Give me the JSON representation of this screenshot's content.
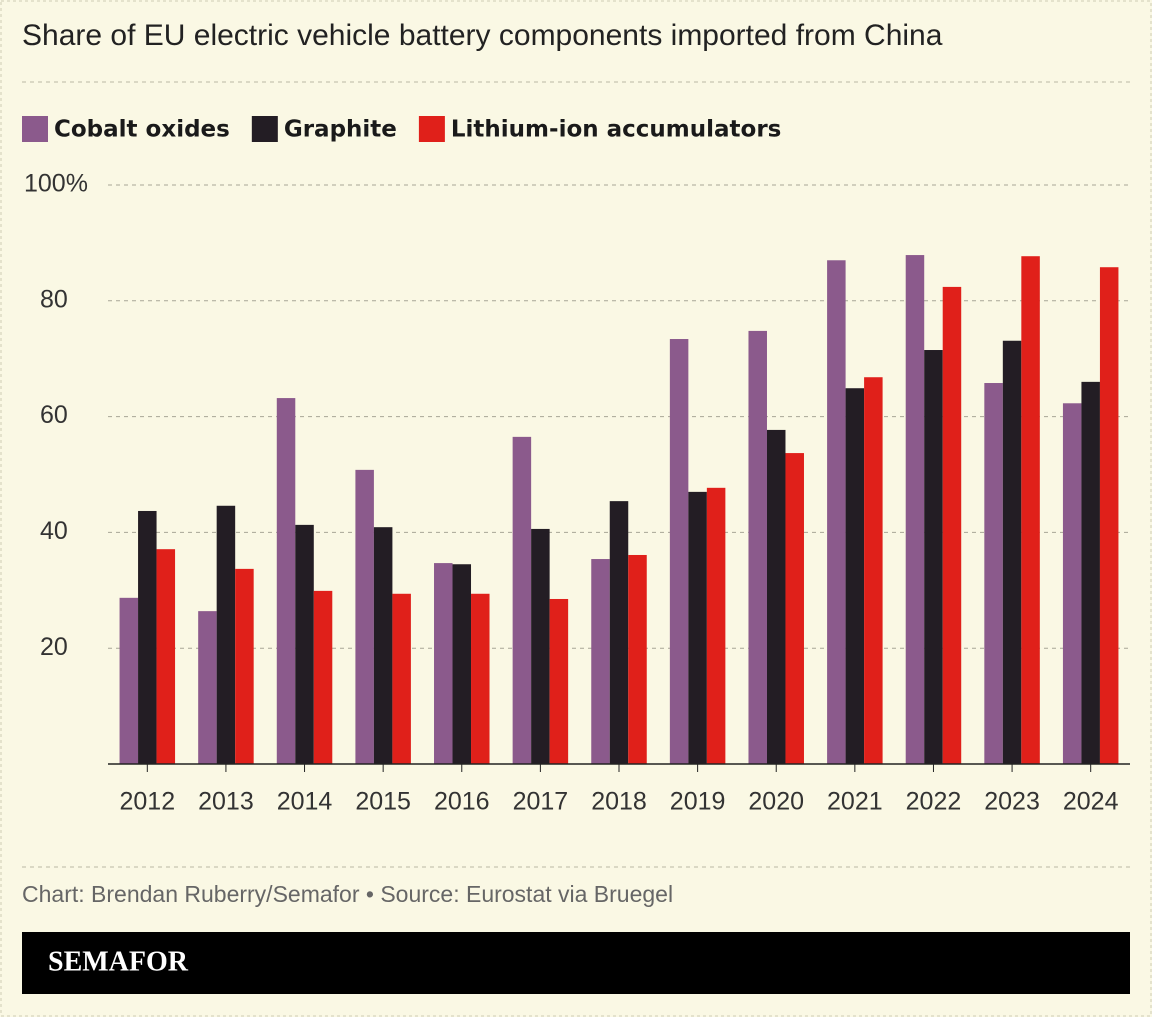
{
  "chart_data": {
    "type": "bar",
    "title": "Share of EU electric vehicle battery components imported from China",
    "categories": [
      "2012",
      "2013",
      "2014",
      "2015",
      "2016",
      "2017",
      "2018",
      "2019",
      "2020",
      "2021",
      "2022",
      "2023",
      "2024"
    ],
    "series": [
      {
        "name": "Cobalt oxides",
        "color": "#8b5a8c",
        "values": [
          28.7,
          26.4,
          63.2,
          50.8,
          34.7,
          56.5,
          35.4,
          73.4,
          74.8,
          87.0,
          87.9,
          65.8,
          62.3
        ]
      },
      {
        "name": "Graphite",
        "color": "#231d24",
        "values": [
          43.7,
          44.6,
          41.3,
          40.9,
          34.5,
          40.6,
          45.4,
          47.0,
          57.7,
          64.9,
          71.5,
          73.1,
          66.0
        ]
      },
      {
        "name": "Lithium-ion accumulators",
        "color": "#e0201a",
        "values": [
          37.1,
          33.7,
          29.9,
          29.4,
          29.4,
          28.5,
          36.1,
          47.7,
          53.7,
          66.8,
          82.4,
          87.7,
          85.8
        ]
      }
    ],
    "ylim": [
      0,
      100
    ],
    "yticks": [
      20,
      40,
      60,
      80,
      {
        "value": 100,
        "label": "100%"
      }
    ],
    "grid": true,
    "source": "Chart: Brendan Ruberry/Semafor • Source: Eurostat via Bruegel",
    "brand": "SEMAFOR"
  }
}
